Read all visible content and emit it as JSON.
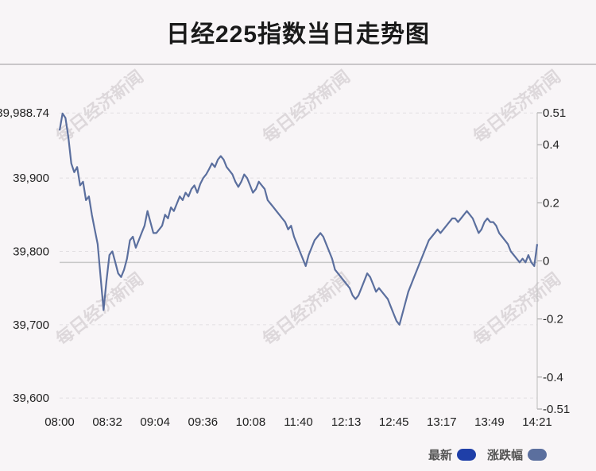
{
  "title": "日经225指数当日走势图",
  "watermark": "每日经济新闻",
  "legend": {
    "latest_label": "最新",
    "latest_color": "#1f3fa8",
    "change_label": "涨跌幅",
    "change_color": "#5b6f9e"
  },
  "chart_data": {
    "type": "line",
    "title": "日经225指数当日走势图",
    "x_ticks": [
      "08:00",
      "08:32",
      "09:04",
      "09:36",
      "10:08",
      "11:40",
      "12:13",
      "12:45",
      "13:17",
      "13:49",
      "14:21"
    ],
    "y_left_ticks": [
      "39,988.74",
      "39,900",
      "39,800",
      "39,700",
      "39,600"
    ],
    "y_right_ticks": [
      "0.51",
      "0.4",
      "0.2",
      "0",
      "-0.2",
      "-0.4",
      "-0.51"
    ],
    "ylim_left": [
      39585,
      39989
    ],
    "ylim_right": [
      -0.51,
      0.51
    ],
    "baseline": 39785,
    "series": [
      {
        "name": "最新",
        "color": "#5b6f9e",
        "values": [
          39965,
          39988,
          39982,
          39955,
          39920,
          39908,
          39915,
          39890,
          39895,
          39870,
          39875,
          39850,
          39830,
          39810,
          39765,
          39720,
          39760,
          39795,
          39800,
          39785,
          39770,
          39765,
          39775,
          39790,
          39815,
          39820,
          39805,
          39815,
          39825,
          39835,
          39855,
          39840,
          39825,
          39825,
          39830,
          39835,
          39850,
          39845,
          39860,
          39855,
          39865,
          39875,
          39870,
          39880,
          39875,
          39885,
          39890,
          39880,
          39892,
          39900,
          39905,
          39912,
          39920,
          39915,
          39925,
          39930,
          39925,
          39915,
          39910,
          39905,
          39895,
          39888,
          39895,
          39905,
          39900,
          39890,
          39880,
          39885,
          39895,
          39890,
          39885,
          39870,
          39865,
          39860,
          39855,
          39850,
          39845,
          39840,
          39830,
          39835,
          39820,
          39810,
          39800,
          39790,
          39780,
          39795,
          39805,
          39815,
          39820,
          39825,
          39820,
          39810,
          39800,
          39790,
          39775,
          39770,
          39765,
          39760,
          39755,
          39750,
          39740,
          39735,
          39740,
          39750,
          39760,
          39770,
          39765,
          39755,
          39745,
          39750,
          39745,
          39740,
          39735,
          39725,
          39715,
          39705,
          39700,
          39715,
          39730,
          39745,
          39755,
          39765,
          39775,
          39785,
          39795,
          39805,
          39815,
          39820,
          39825,
          39830,
          39825,
          39830,
          39835,
          39840,
          39845,
          39845,
          39840,
          39845,
          39850,
          39855,
          39850,
          39845,
          39835,
          39825,
          39830,
          39840,
          39845,
          39840,
          39840,
          39835,
          39825,
          39820,
          39815,
          39810,
          39800,
          39795,
          39790,
          39785,
          39790,
          39785,
          39795,
          39785,
          39780,
          39810
        ]
      }
    ],
    "grid": true,
    "legend_position": "bottom-right"
  }
}
